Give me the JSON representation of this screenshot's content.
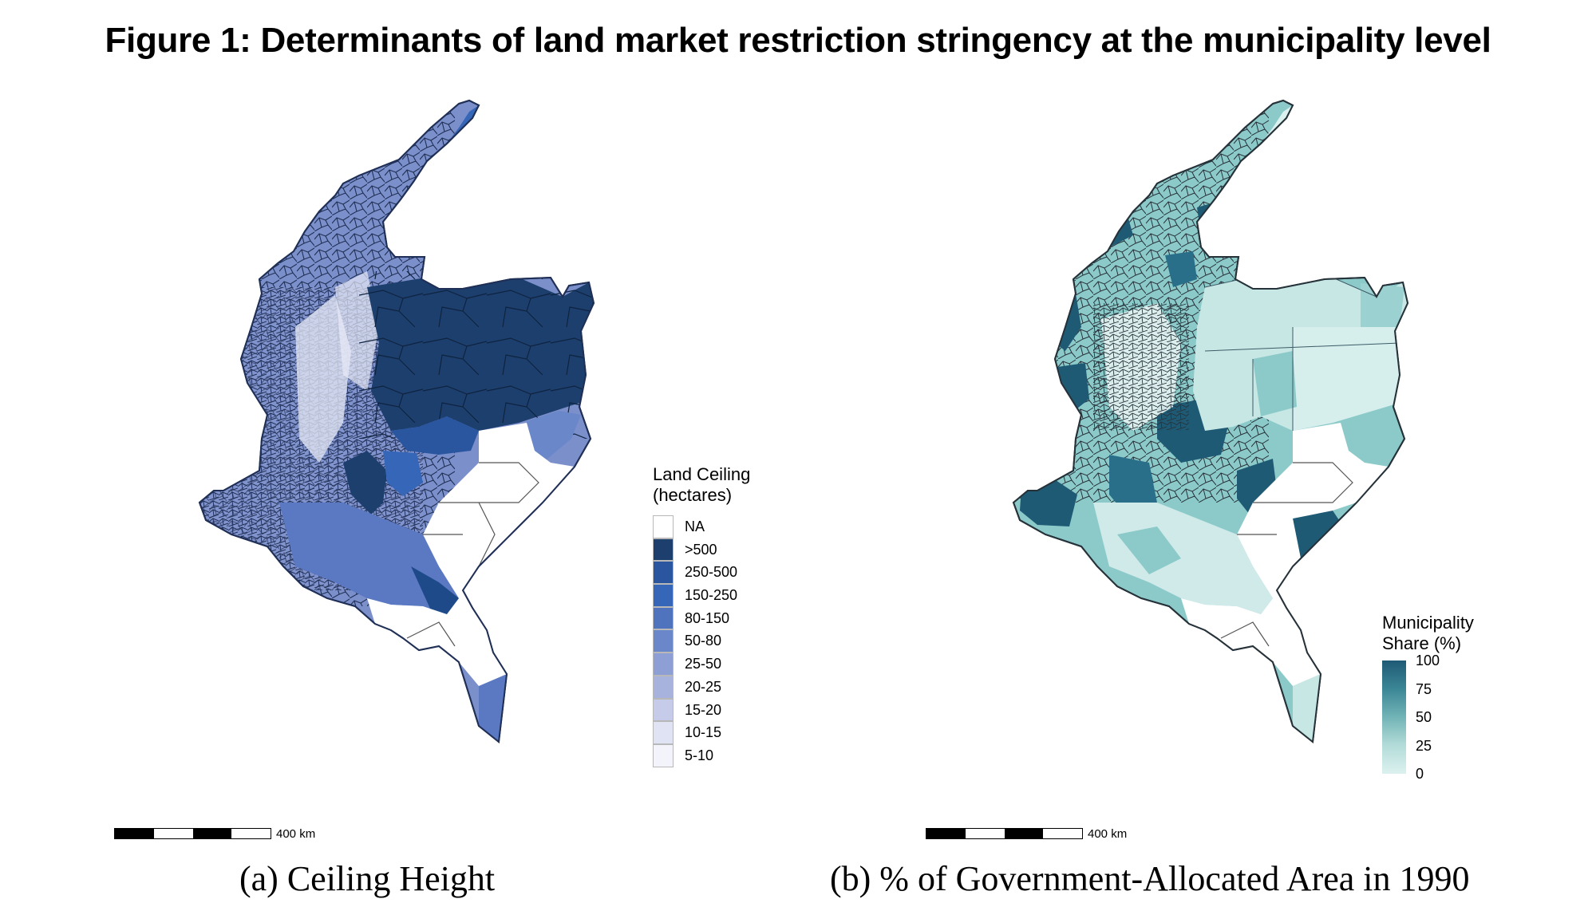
{
  "figure_title": "Figure 1: Determinants of land market restriction stringency at the municipality level",
  "panels": [
    {
      "caption": "(a) Ceiling Height",
      "legend_title_line1": "Land Ceiling",
      "legend_title_line2": "(hectares)",
      "legend_items": [
        {
          "label": "NA",
          "color": "#ffffff"
        },
        {
          "label": ">500",
          "color": "#1c3f6d"
        },
        {
          "label": "250-500",
          "color": "#2a56a0"
        },
        {
          "label": "150-250",
          "color": "#3566b7"
        },
        {
          "label": "80-150",
          "color": "#4f73bd"
        },
        {
          "label": "50-80",
          "color": "#6a87c9"
        },
        {
          "label": "25-50",
          "color": "#8d9fd4"
        },
        {
          "label": "20-25",
          "color": "#a7b2dd"
        },
        {
          "label": "15-20",
          "color": "#c5cbe9"
        },
        {
          "label": "10-15",
          "color": "#e0e3f3"
        },
        {
          "label": "5-10",
          "color": "#f3f3fb"
        }
      ],
      "scale_label": "400 km"
    },
    {
      "caption": "(b) % of Government-Allocated Area in 1990",
      "legend_title_line1": "Municipality",
      "legend_title_line2": "Share (%)",
      "gradient_ticks": [
        "100",
        "75",
        "50",
        "25",
        "0"
      ],
      "gradient_colors": [
        "#1f5a75",
        "#3b8696",
        "#72b4b6",
        "#b3dcd9",
        "#dcf1ef"
      ],
      "scale_label": "400 km"
    }
  ]
}
